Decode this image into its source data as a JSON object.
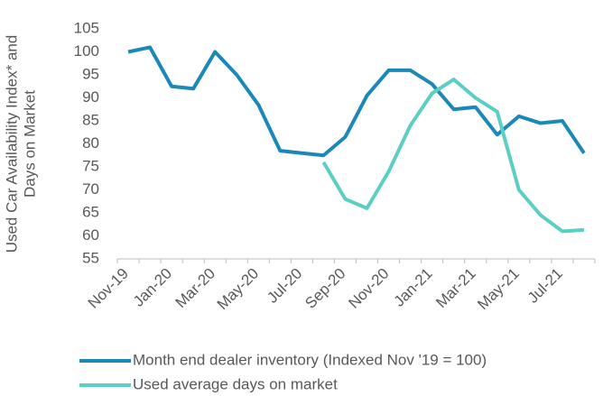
{
  "chart_data": {
    "type": "line",
    "y_label": [
      "Used Car Availability Index* and",
      "Days on Market"
    ],
    "categories": [
      "Nov-19",
      null,
      "Jan-20",
      null,
      "Mar-20",
      null,
      "May-20",
      null,
      "Jul-20",
      null,
      "Sep-20",
      null,
      "Nov-20",
      null,
      "Jan-21",
      null,
      "Mar-21",
      null,
      "May-21",
      null,
      "Jul-21",
      null
    ],
    "series": [
      {
        "name": "Month end dealer inventory (Indexed Nov '19 = 100)",
        "color": "#1a88b8",
        "values": [
          100,
          101,
          92.5,
          92,
          100,
          95,
          88.5,
          78.5,
          78,
          77.5,
          81.5,
          90.5,
          96,
          96,
          93,
          87.5,
          88,
          82,
          86,
          84.5,
          85,
          78
        ]
      },
      {
        "name": "Used average days on market",
        "color": "#5ccfc5",
        "values": [
          null,
          null,
          null,
          null,
          null,
          null,
          null,
          null,
          null,
          76,
          68,
          66,
          74,
          84,
          91,
          94,
          90,
          87,
          70,
          64.5,
          61,
          61.3
        ]
      }
    ],
    "ylim": [
      55,
      105
    ],
    "yticks": [
      55,
      60,
      65,
      70,
      75,
      80,
      85,
      90,
      95,
      100,
      105
    ],
    "grid": false
  }
}
